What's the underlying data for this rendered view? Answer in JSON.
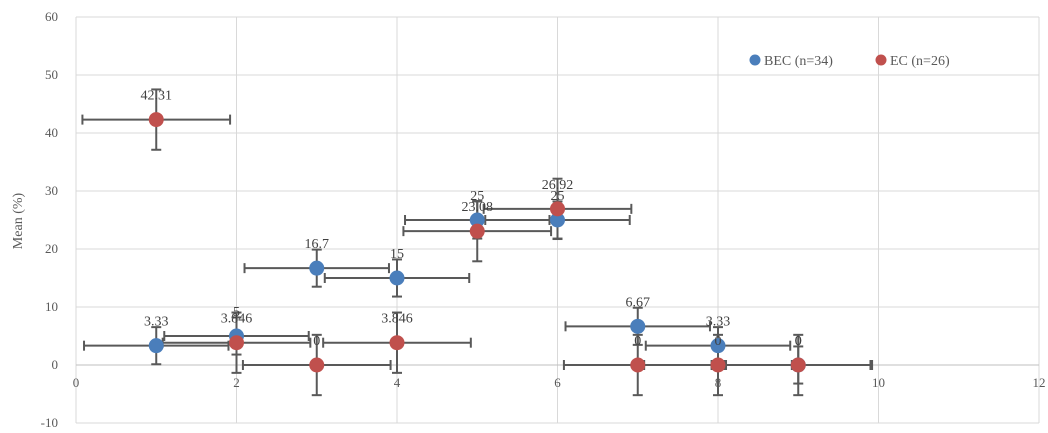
{
  "chart_data": {
    "type": "scatter",
    "title": "",
    "xlabel": "",
    "ylabel": "Mean (%)",
    "xlim": [
      0,
      12
    ],
    "ylim": [
      -10,
      60
    ],
    "x_ticks": [
      "0",
      "2",
      "4",
      "6",
      "8",
      "10",
      "12"
    ],
    "y_ticks": [
      "-10",
      "0",
      "10",
      "20",
      "30",
      "40",
      "50",
      "60"
    ],
    "grid": true,
    "legend_position": "top-right",
    "error_bars": true,
    "series": [
      {
        "name": "BEC (n=34)",
        "color": "#4a7ebb",
        "points": [
          {
            "x": 1,
            "y": 3.33,
            "label": "3.33",
            "y_err": 3.2,
            "x_err": 0.9
          },
          {
            "x": 2,
            "y": 5,
            "label": "5",
            "y_err": 3.2,
            "x_err": 0.9
          },
          {
            "x": 3,
            "y": 16.7,
            "label": "16.7",
            "y_err": 3.2,
            "x_err": 0.9
          },
          {
            "x": 4,
            "y": 15,
            "label": "15",
            "y_err": 3.2,
            "x_err": 0.9
          },
          {
            "x": 5,
            "y": 25,
            "label": "25",
            "y_err": 3.2,
            "x_err": 0.9
          },
          {
            "x": 6,
            "y": 25,
            "label": "25",
            "y_err": 3.2,
            "x_err": 0.9
          },
          {
            "x": 7,
            "y": 6.67,
            "label": "6.67",
            "y_err": 3.2,
            "x_err": 0.9
          },
          {
            "x": 8,
            "y": 3.33,
            "label": "3.33",
            "y_err": 3.2,
            "x_err": 0.9
          },
          {
            "x": 9,
            "y": 0,
            "label": "0",
            "y_err": 3.2,
            "x_err": 0.9
          }
        ]
      },
      {
        "name": "EC (n=26)",
        "color": "#c0504d",
        "points": [
          {
            "x": 1,
            "y": 42.31,
            "label": "42.31",
            "y_err": 5.2,
            "x_err": 0.92
          },
          {
            "x": 2,
            "y": 3.846,
            "label": "3.846",
            "y_err": 5.2,
            "x_err": 0.92
          },
          {
            "x": 3,
            "y": 0,
            "label": "0",
            "y_err": 5.2,
            "x_err": 0.92
          },
          {
            "x": 4,
            "y": 3.846,
            "label": "3.846",
            "y_err": 5.2,
            "x_err": 0.92
          },
          {
            "x": 5,
            "y": 23.08,
            "label": "23.08",
            "y_err": 5.2,
            "x_err": 0.92
          },
          {
            "x": 6,
            "y": 26.92,
            "label": "26.92",
            "y_err": 5.2,
            "x_err": 0.92
          },
          {
            "x": 7,
            "y": 0,
            "label": "0",
            "y_err": 5.2,
            "x_err": 0.92
          },
          {
            "x": 8,
            "y": 0,
            "label": "0",
            "y_err": 5.2,
            "x_err": 0.92
          },
          {
            "x": 9,
            "y": 0,
            "label": "0",
            "y_err": 5.2,
            "x_err": 0.92
          }
        ]
      }
    ]
  }
}
